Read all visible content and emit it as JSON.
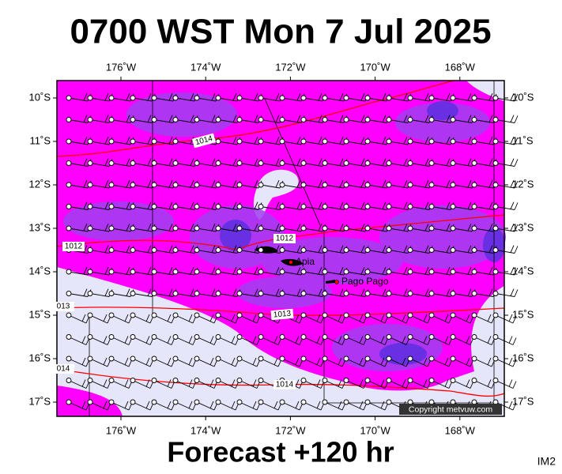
{
  "title": "0700 WST Mon 7 Jul 2025",
  "footer": "Forecast +120 hr",
  "corner": "IM2",
  "copyright": "Copyright metvuw.com",
  "lon_labels": [
    "176˚W",
    "174˚W",
    "172˚W",
    "170˚W",
    "168˚W"
  ],
  "lat_labels": [
    "10˚S",
    "11˚S",
    "12˚S",
    "13˚S",
    "14˚S",
    "15˚S",
    "16˚S",
    "17˚S"
  ],
  "places": [
    "Apia",
    "Pago Pago"
  ],
  "isobar_labels": [
    "1014",
    "1012",
    "1012",
    "013",
    "1013",
    "014",
    "1014"
  ]
}
